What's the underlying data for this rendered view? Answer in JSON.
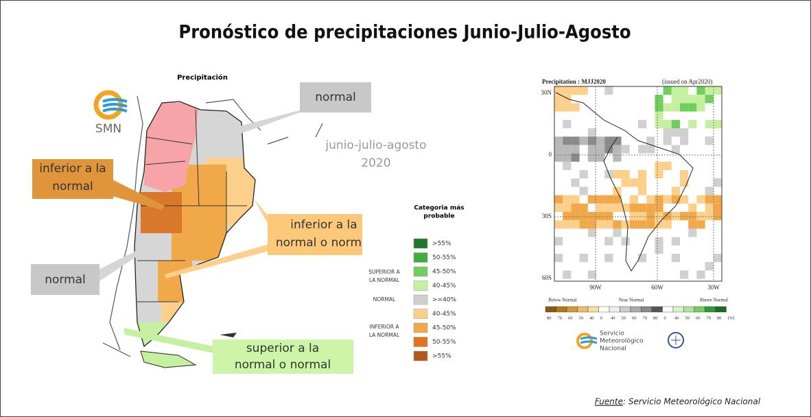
{
  "title": "Pronóstico de precipitaciones Junio-Julio-Agosto",
  "left_map": {
    "title": "Precipitación",
    "logo": "SMN",
    "period": [
      "junio-julio-agosto",
      "2020"
    ],
    "callouts": [
      {
        "lines": [
          "normal"
        ]
      },
      {
        "lines": [
          "inferior a la",
          "normal"
        ]
      },
      {
        "lines": [
          "inferior a la",
          "normal o normal"
        ]
      },
      {
        "lines": [
          "normal"
        ]
      },
      {
        "lines": [
          "superior a la",
          "normal o normal"
        ]
      }
    ],
    "legend": {
      "title": [
        "Categoria más",
        "probable"
      ],
      "groups": [
        {
          "lines": [
            "SUPERIOR A",
            "LA NORMAL"
          ]
        },
        {
          "lines": [
            "NORMAL"
          ]
        },
        {
          "lines": [
            "INFERIOR A",
            "LA NORMAL"
          ]
        }
      ],
      "items": [
        {
          "label": ">55%",
          "color": "#1e7a2a"
        },
        {
          "label": "50-55%",
          "color": "#3fae3c"
        },
        {
          "label": "45-50%",
          "color": "#6fcf5a"
        },
        {
          "label": "40-45%",
          "color": "#c4f0a0"
        },
        {
          "label": ">=40%",
          "color": "#cfcfcf"
        },
        {
          "label": "40-45%",
          "color": "#fcd08a"
        },
        {
          "label": "45-50%",
          "color": "#f0a848"
        },
        {
          "label": "50-55%",
          "color": "#e2731e"
        },
        {
          "label": ">55%",
          "color": "#b5561c"
        }
      ]
    }
  },
  "right_map": {
    "title": "Precipitation : MJJ2020",
    "issued": "(issued on Apr2020)",
    "lat_labels": [
      "30N",
      "0",
      "30S",
      "60S"
    ],
    "lon_labels": [
      "90W",
      "60W",
      "30W"
    ],
    "classes": [
      "Below Normal",
      "Near Normal",
      "Above Normal"
    ],
    "scale": [
      "80",
      "70",
      "60",
      "50",
      "40",
      "0",
      "40",
      "50",
      "60",
      "70",
      "80",
      "0",
      "40",
      "50",
      "60",
      "70",
      "80",
      "[%]"
    ],
    "logo": [
      "Servicio",
      "Meteorológico",
      "Nacional"
    ]
  },
  "source": {
    "label": "Fuente",
    "text": ": Servicio Meteorológico Nacional"
  }
}
